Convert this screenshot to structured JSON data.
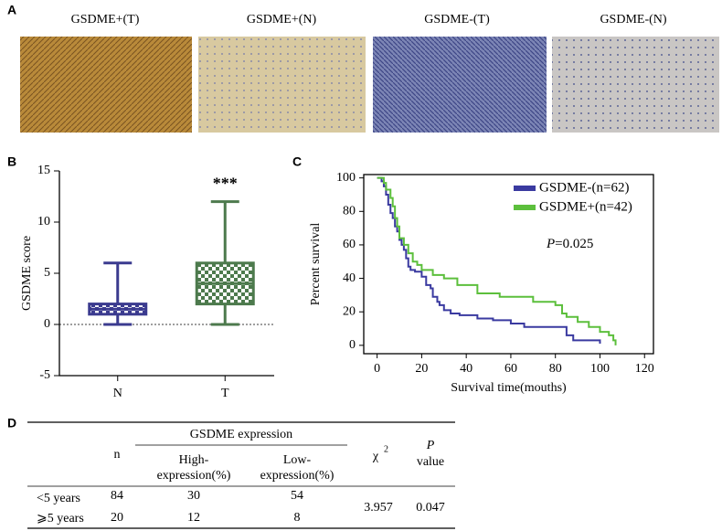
{
  "panel_labels": [
    "A",
    "B",
    "C",
    "D"
  ],
  "images": [
    "GSDME+(T)",
    "GSDME+(N)",
    "GSDME-(T)",
    "GSDME-(N)"
  ],
  "chart_data": [
    {
      "type": "box",
      "y_label": "GSDME score",
      "categories": [
        "N",
        "T"
      ],
      "boxes": [
        {
          "min": 0,
          "q1": 1,
          "median": 1.5,
          "q3": 2,
          "max": 6,
          "color": "#3b3b8f"
        },
        {
          "min": 0,
          "q1": 2,
          "median": 4,
          "q3": 6,
          "max": 12,
          "color": "#4d7a4d"
        }
      ],
      "annotations": [
        null,
        "***"
      ],
      "reference_line": 0,
      "ylim": [
        -5,
        15
      ],
      "yticks": [
        -5,
        0,
        5,
        10,
        15
      ]
    },
    {
      "type": "step",
      "x_label": "Survival time(mouths)",
      "y_label": "Percent survival",
      "annotation": {
        "italic": "P",
        "text": "=0.025"
      },
      "legend": "top-right",
      "series": [
        {
          "name": "GSDME-(n=62)",
          "color": "#3a3aa0",
          "x": [
            0,
            2,
            3,
            4,
            5,
            6,
            7,
            8,
            9,
            10,
            11,
            12,
            13,
            14,
            15,
            17,
            20,
            22,
            24,
            25,
            27,
            28,
            30,
            33,
            37,
            45,
            52,
            60,
            66,
            85,
            88,
            100
          ],
          "values": [
            100,
            98,
            95,
            90,
            84,
            79,
            76,
            71,
            68,
            63,
            60,
            57,
            52,
            47,
            45,
            44,
            41,
            36,
            34,
            29,
            26,
            24,
            21,
            19,
            18,
            16,
            15,
            13,
            11,
            6,
            3,
            1
          ]
        },
        {
          "name": "GSDME+(n=42)",
          "color": "#5cbf3c",
          "x": [
            0,
            3,
            4,
            6,
            7,
            8,
            9,
            10,
            12,
            14,
            16,
            18,
            20,
            25,
            30,
            36,
            45,
            55,
            70,
            80,
            83,
            85,
            90,
            95,
            100,
            104,
            106,
            107
          ],
          "values": [
            100,
            97,
            93,
            88,
            83,
            76,
            71,
            64,
            60,
            55,
            50,
            48,
            45,
            42,
            40,
            36,
            31,
            29,
            26,
            24,
            19,
            17,
            14,
            11,
            8,
            6,
            3,
            0
          ]
        }
      ],
      "xlim": [
        -6,
        124
      ],
      "ylim": [
        -5,
        102
      ],
      "xticks": [
        0,
        20,
        40,
        60,
        80,
        100,
        120
      ],
      "yticks": [
        0,
        20,
        40,
        60,
        80,
        100
      ]
    }
  ],
  "table": {
    "group_header": "GSDME expression",
    "columns": [
      [
        "n"
      ],
      [
        "High-",
        "expression(%)"
      ],
      [
        "Low-",
        "expression(%)"
      ],
      [
        "χ",
        "2"
      ],
      [
        "P",
        "value"
      ]
    ],
    "rows": [
      [
        "<5 years",
        84,
        30,
        54
      ],
      [
        "⩾5 years",
        20,
        12,
        8
      ]
    ],
    "chi_square": 3.957,
    "p_value": 0.047
  }
}
